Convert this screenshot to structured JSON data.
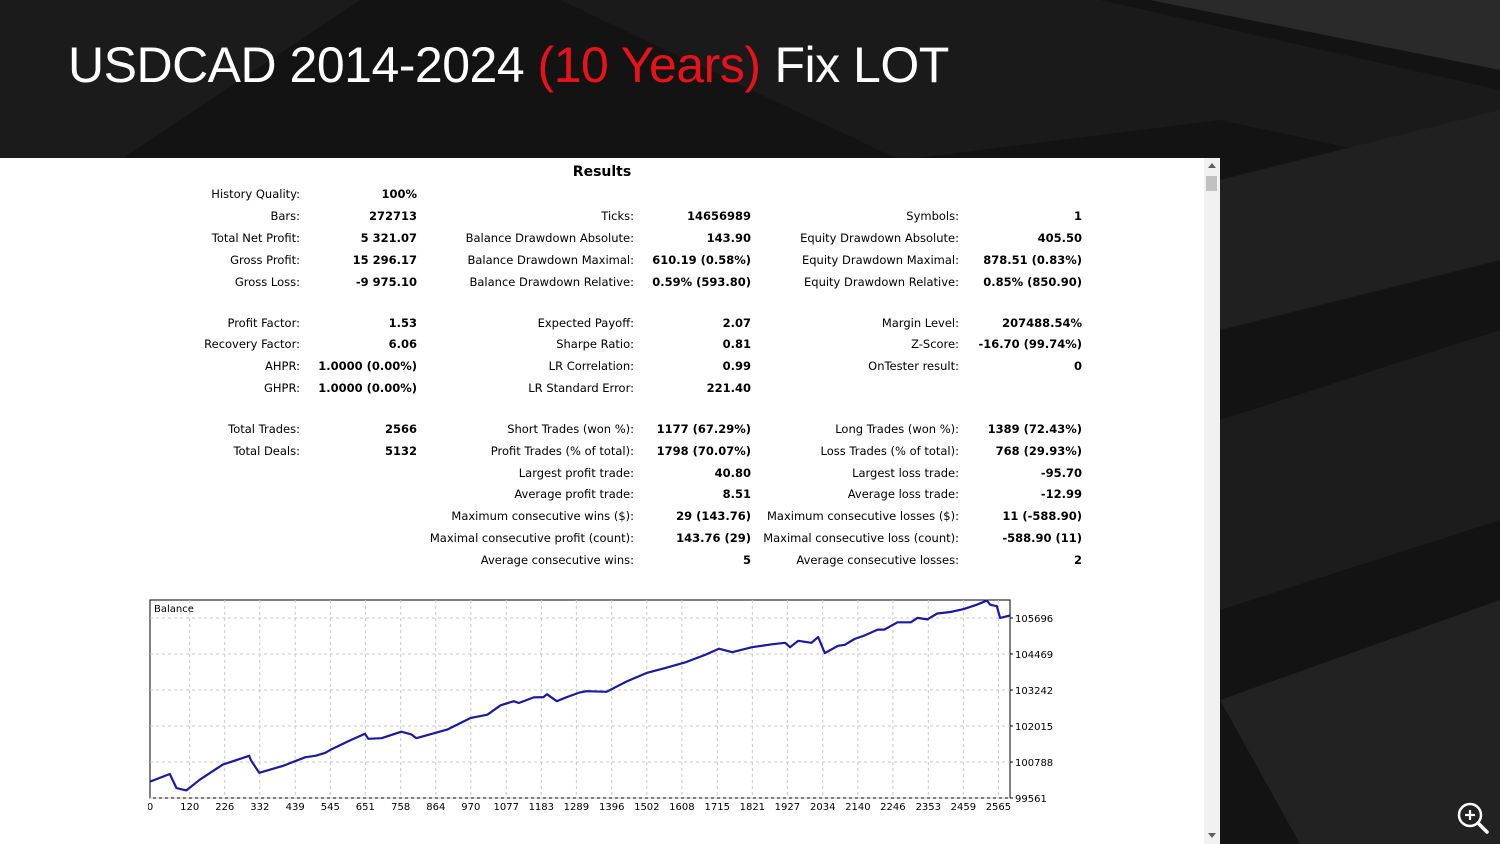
{
  "slide": {
    "title_main": "USDCAD 2014-2024",
    "title_accent": "(10 Years)",
    "title_suffix": "Fix LOT",
    "accent_color": "#e8121a"
  },
  "report": {
    "heading": "Results",
    "col1": [
      {
        "label": "History Quality:",
        "value": "100%",
        "row": 0
      },
      {
        "label": "Bars:",
        "value": "272713",
        "row": 1
      },
      {
        "label": "Total Net Profit:",
        "value": "5 321.07",
        "row": 2
      },
      {
        "label": "Gross Profit:",
        "value": "15 296.17",
        "row": 3
      },
      {
        "label": "Gross Loss:",
        "value": "-9 975.10",
        "row": 4
      },
      {
        "label": "Profit Factor:",
        "value": "1.53",
        "row": 6
      },
      {
        "label": "Recovery Factor:",
        "value": "6.06",
        "row": 7
      },
      {
        "label": "AHPR:",
        "value": "1.0000 (0.00%)",
        "row": 8
      },
      {
        "label": "GHPR:",
        "value": "1.0000 (0.00%)",
        "row": 9
      },
      {
        "label": "Total Trades:",
        "value": "2566",
        "row": 11
      },
      {
        "label": "Total Deals:",
        "value": "5132",
        "row": 12
      }
    ],
    "col2": [
      {
        "label": "Ticks:",
        "value": "14656989",
        "row": 1
      },
      {
        "label": "Balance Drawdown Absolute:",
        "value": "143.90",
        "row": 2
      },
      {
        "label": "Balance Drawdown Maximal:",
        "value": "610.19 (0.58%)",
        "row": 3
      },
      {
        "label": "Balance Drawdown Relative:",
        "value": "0.59% (593.80)",
        "row": 4
      },
      {
        "label": "Expected Payoff:",
        "value": "2.07",
        "row": 6
      },
      {
        "label": "Sharpe Ratio:",
        "value": "0.81",
        "row": 7
      },
      {
        "label": "LR Correlation:",
        "value": "0.99",
        "row": 8
      },
      {
        "label": "LR Standard Error:",
        "value": "221.40",
        "row": 9
      },
      {
        "label": "Short Trades (won %):",
        "value": "1177 (67.29%)",
        "row": 11
      },
      {
        "label": "Profit Trades (% of total):",
        "value": "1798 (70.07%)",
        "row": 12
      },
      {
        "label": "Largest profit trade:",
        "value": "40.80",
        "row": 13
      },
      {
        "label": "Average profit trade:",
        "value": "8.51",
        "row": 14
      },
      {
        "label": "Maximum consecutive wins ($):",
        "value": "29 (143.76)",
        "row": 15
      },
      {
        "label": "Maximal consecutive profit (count):",
        "value": "143.76 (29)",
        "row": 16
      },
      {
        "label": "Average consecutive wins:",
        "value": "5",
        "row": 17
      }
    ],
    "col3": [
      {
        "label": "Symbols:",
        "value": "1",
        "row": 1
      },
      {
        "label": "Equity Drawdown Absolute:",
        "value": "405.50",
        "row": 2
      },
      {
        "label": "Equity Drawdown Maximal:",
        "value": "878.51 (0.83%)",
        "row": 3
      },
      {
        "label": "Equity Drawdown Relative:",
        "value": "0.85% (850.90)",
        "row": 4
      },
      {
        "label": "Margin Level:",
        "value": "207488.54%",
        "row": 6
      },
      {
        "label": "Z-Score:",
        "value": "-16.70 (99.74%)",
        "row": 7
      },
      {
        "label": "OnTester result:",
        "value": "0",
        "row": 8
      },
      {
        "label": "Long Trades (won %):",
        "value": "1389 (72.43%)",
        "row": 11
      },
      {
        "label": "Loss Trades (% of total):",
        "value": "768 (29.93%)",
        "row": 12
      },
      {
        "label": "Largest loss trade:",
        "value": "-95.70",
        "row": 13
      },
      {
        "label": "Average loss trade:",
        "value": "-12.99",
        "row": 14
      },
      {
        "label": "Maximum consecutive losses ($):",
        "value": "11 (-588.90)",
        "row": 15
      },
      {
        "label": "Maximal consecutive loss (count):",
        "value": "-588.90 (11)",
        "row": 16
      },
      {
        "label": "Average consecutive losses:",
        "value": "2",
        "row": 17
      }
    ]
  },
  "chart_data": {
    "type": "line",
    "title": "Balance",
    "line_color": "#1a1aa6",
    "x_ticks": [
      "0",
      "120",
      "226",
      "332",
      "439",
      "545",
      "651",
      "758",
      "864",
      "970",
      "1077",
      "1183",
      "1289",
      "1396",
      "1502",
      "1608",
      "1715",
      "1821",
      "1927",
      "2034",
      "2140",
      "2246",
      "2353",
      "2459",
      "2565"
    ],
    "y_ticks": [
      "99561",
      "100788",
      "102015",
      "103242",
      "104469",
      "105696"
    ],
    "xlim": [
      0,
      2600
    ],
    "ylim": [
      99561,
      106310
    ],
    "grid": true,
    "series": [
      {
        "x": [
          0,
          60,
          80,
          110,
          150,
          220,
          300,
          305,
          330,
          400,
          470,
          500,
          530,
          545,
          600,
          650,
          660,
          700,
          760,
          790,
          805,
          900,
          970,
          1020,
          1060,
          1100,
          1115,
          1160,
          1190,
          1200,
          1230,
          1260,
          1300,
          1320,
          1380,
          1440,
          1500,
          1560,
          1620,
          1680,
          1720,
          1760,
          1820,
          1880,
          1920,
          1935,
          1960,
          2000,
          2020,
          2040,
          2080,
          2100,
          2130,
          2160,
          2200,
          2220,
          2260,
          2300,
          2320,
          2350,
          2380,
          2420,
          2460,
          2500,
          2530,
          2540,
          2560,
          2570,
          2600
        ],
        "y": [
          100120,
          100380,
          99900,
          99820,
          100180,
          100700,
          101000,
          100850,
          100420,
          100650,
          100950,
          101000,
          101100,
          101200,
          101500,
          101750,
          101580,
          101600,
          101820,
          101730,
          101600,
          101900,
          102290,
          102400,
          102720,
          102860,
          102800,
          102990,
          103000,
          103100,
          102860,
          103000,
          103160,
          103200,
          103180,
          103530,
          103820,
          104000,
          104190,
          104450,
          104650,
          104530,
          104700,
          104800,
          104850,
          104700,
          104920,
          104850,
          105050,
          104500,
          104750,
          104780,
          104980,
          105100,
          105300,
          105300,
          105550,
          105550,
          105700,
          105650,
          105850,
          105900,
          106000,
          106150,
          106290,
          106150,
          106100,
          105700,
          105780
        ]
      }
    ]
  }
}
